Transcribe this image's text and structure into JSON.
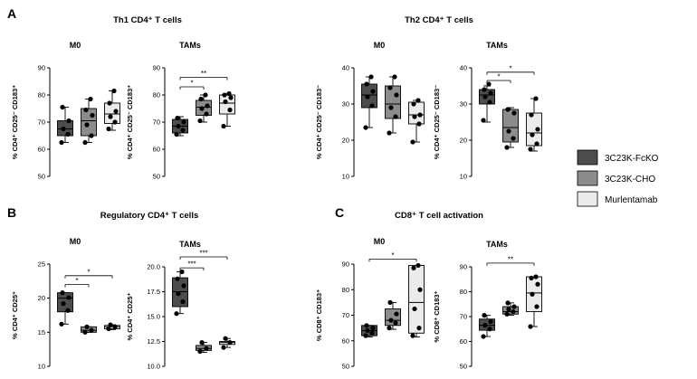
{
  "panel_labels": [
    "A",
    "B",
    "C"
  ],
  "section_titles": {
    "th1": "Th1 CD4⁺ T cells",
    "th2": "Th2 CD4⁺ T cells",
    "treg": "Regulatory CD4⁺ T cells",
    "cd8": "CD8⁺ T cell activation"
  },
  "legend": [
    {
      "label": "3C23K-FcKO",
      "color": "#4d4d4d"
    },
    {
      "label": "3C23K-CHO",
      "color": "#8c8c8c"
    },
    {
      "label": "Murlentamab",
      "color": "#ebebeb"
    }
  ],
  "chart_data": [
    {
      "type": "box",
      "title": "M0",
      "ylabel": "% CD4⁺ CD25⁻ CD183⁺",
      "ylim": [
        50,
        90
      ],
      "ticks": [
        "50",
        "60",
        "70",
        "80",
        "90"
      ],
      "groups": [
        {
          "box": [
            65,
            67.5,
            70.5
          ],
          "whisker": [
            62.5,
            75.5
          ],
          "points": [
            62.5,
            65.5,
            67.5,
            70.5,
            75.5
          ]
        },
        {
          "box": [
            65,
            70.5,
            75
          ],
          "whisker": [
            62.5,
            78.5
          ],
          "points": [
            62.5,
            65,
            69,
            72.5,
            74.5,
            78.5
          ]
        },
        {
          "box": [
            69.5,
            73,
            77
          ],
          "whisker": [
            67,
            81.5
          ],
          "points": [
            67.5,
            70,
            72,
            74,
            77,
            81.5
          ]
        }
      ],
      "significance": []
    },
    {
      "type": "box",
      "title": "TAMs",
      "ylabel": "% CD4⁺ CD25⁻ CD183⁺",
      "ylim": [
        50,
        90
      ],
      "ticks": [
        "50",
        "60",
        "70",
        "80",
        "90"
      ],
      "groups": [
        {
          "box": [
            66,
            68.5,
            71
          ],
          "whisker": [
            65,
            72
          ],
          "points": [
            65.5,
            67,
            68.5,
            70,
            71.5
          ]
        },
        {
          "box": [
            72.5,
            75.5,
            78
          ],
          "whisker": [
            70,
            80
          ],
          "points": [
            70.5,
            73,
            75,
            76,
            78.5,
            80
          ]
        },
        {
          "box": [
            73,
            77,
            80
          ],
          "whisker": [
            68.5,
            80.5
          ],
          "points": [
            68.5,
            74.5,
            77.5,
            79,
            80,
            80.5
          ]
        }
      ],
      "significance": [
        {
          "from": 0,
          "to": 1,
          "y": 83,
          "label": "*"
        },
        {
          "from": 0,
          "to": 2,
          "y": 86.5,
          "label": "**"
        }
      ]
    },
    {
      "type": "box",
      "title": "M0",
      "ylabel": "% CD4⁺ CD25⁻ CD183⁻",
      "ylim": [
        10,
        40
      ],
      "ticks": [
        "10",
        "20",
        "30",
        "40"
      ],
      "groups": [
        {
          "box": [
            29,
            32.5,
            35.5
          ],
          "whisker": [
            23.5,
            37.5
          ],
          "points": [
            23.5,
            29.5,
            32,
            33.5,
            35.5,
            37.5
          ]
        },
        {
          "box": [
            26,
            30,
            35
          ],
          "whisker": [
            22,
            37.5
          ],
          "points": [
            22,
            26.5,
            29,
            32.5,
            34.5,
            37.5
          ]
        },
        {
          "box": [
            24.5,
            27,
            30.5
          ],
          "whisker": [
            19.5,
            31
          ],
          "points": [
            19.5,
            24.5,
            26.5,
            27,
            30,
            31
          ]
        }
      ],
      "significance": []
    },
    {
      "type": "box",
      "title": "TAMs",
      "ylabel": "% CD4⁺ CD25⁻ CD183⁻",
      "ylim": [
        10,
        40
      ],
      "ticks": [
        "10",
        "20",
        "30",
        "40"
      ],
      "groups": [
        {
          "box": [
            30,
            32.5,
            34
          ],
          "whisker": [
            25,
            35
          ],
          "points": [
            25.5,
            30.5,
            32,
            33,
            34,
            35.5
          ]
        },
        {
          "box": [
            19.5,
            23.5,
            28.5
          ],
          "whisker": [
            18,
            29
          ],
          "points": [
            18,
            20.5,
            22.5,
            27.5,
            28.5
          ]
        },
        {
          "box": [
            18.5,
            22,
            27.5
          ],
          "whisker": [
            17,
            31.5
          ],
          "points": [
            17.5,
            19,
            21.5,
            23,
            27,
            31.5
          ]
        }
      ],
      "significance": [
        {
          "from": 0,
          "to": 1,
          "y": 36.5,
          "label": "*"
        },
        {
          "from": 0,
          "to": 2,
          "y": 38.8,
          "label": "*"
        }
      ]
    },
    {
      "type": "box",
      "title": "M0",
      "ylabel": "% CD4⁺ CD25⁺",
      "ylim": [
        10,
        25
      ],
      "ticks": [
        "10",
        "15",
        "20",
        "25"
      ],
      "groups": [
        {
          "box": [
            18,
            20,
            20.8
          ],
          "whisker": [
            16.2,
            20.8
          ],
          "points": [
            16.2,
            18.2,
            19.2,
            20.1,
            20.8
          ]
        },
        {
          "box": [
            15,
            15.3,
            15.8
          ],
          "whisker": [
            15,
            15.8
          ],
          "points": [
            15,
            15.3,
            15.8
          ]
        },
        {
          "box": [
            15.5,
            15.8,
            16
          ],
          "whisker": [
            15.4,
            16.1
          ],
          "points": [
            15.5,
            15.8,
            16.1
          ]
        }
      ],
      "significance": [
        {
          "from": 0,
          "to": 1,
          "y": 22,
          "label": "*"
        },
        {
          "from": 0,
          "to": 2,
          "y": 23.3,
          "label": "*"
        }
      ]
    },
    {
      "type": "box",
      "title": "TAMs",
      "ylabel": "% CD4⁺ CD25⁺",
      "ylim": [
        10,
        20
      ],
      "ticks": [
        "10.0",
        "12.5",
        "15.0",
        "17.5",
        "20.0"
      ],
      "groups": [
        {
          "box": [
            16,
            17.5,
            18.9
          ],
          "whisker": [
            15.3,
            19.5
          ],
          "points": [
            15.3,
            16.5,
            17.3,
            18.1,
            18.8,
            19.5
          ]
        },
        {
          "box": [
            11.6,
            11.8,
            12.1
          ],
          "whisker": [
            11.4,
            12.4
          ],
          "points": [
            11.5,
            11.8,
            12.4
          ]
        },
        {
          "box": [
            12.2,
            12.4,
            12.5
          ],
          "whisker": [
            11.9,
            12.8
          ],
          "points": [
            11.9,
            12.4,
            12.8
          ]
        }
      ],
      "significance": [
        {
          "from": 0,
          "to": 1,
          "y": 19.9,
          "label": "***"
        },
        {
          "from": 0,
          "to": 2,
          "y": 21.0,
          "label": "***"
        }
      ]
    },
    {
      "type": "box",
      "title": "M0",
      "ylabel": "% CD8⁺ CD183⁺",
      "ylim": [
        50,
        90
      ],
      "ticks": [
        "50",
        "60",
        "70",
        "80",
        "90"
      ],
      "groups": [
        {
          "box": [
            62,
            64,
            66
          ],
          "whisker": [
            61.5,
            66
          ],
          "points": [
            62,
            63,
            64,
            65,
            66
          ]
        },
        {
          "box": [
            66,
            68,
            72.5
          ],
          "whisker": [
            64.5,
            75
          ],
          "points": [
            65,
            67,
            68,
            70.5,
            75
          ]
        },
        {
          "box": [
            63,
            75,
            89.5
          ],
          "whisker": [
            61.5,
            89.5
          ],
          "points": [
            62,
            65,
            72.5,
            80,
            88.5,
            89.5
          ]
        }
      ],
      "significance": [
        {
          "from": 0,
          "to": 2,
          "y": 92,
          "label": "*"
        }
      ]
    },
    {
      "type": "box",
      "title": "TAMs",
      "ylabel": "% CD8⁺ CD183⁺",
      "ylim": [
        50,
        90
      ],
      "ticks": [
        "50",
        "60",
        "70",
        "80",
        "90"
      ],
      "groups": [
        {
          "box": [
            64.5,
            66.5,
            69
          ],
          "whisker": [
            62,
            70.5
          ],
          "points": [
            62,
            65,
            66.5,
            68,
            70.5
          ]
        },
        {
          "box": [
            71,
            72,
            74
          ],
          "whisker": [
            70.5,
            75.5
          ],
          "points": [
            71,
            72,
            73,
            74,
            75.5
          ]
        },
        {
          "box": [
            72,
            79.5,
            86
          ],
          "whisker": [
            66,
            86
          ],
          "points": [
            66,
            74,
            79,
            83,
            85.5,
            86
          ]
        }
      ],
      "significance": [
        {
          "from": 0,
          "to": 2,
          "y": 91.5,
          "label": "**"
        }
      ]
    }
  ]
}
